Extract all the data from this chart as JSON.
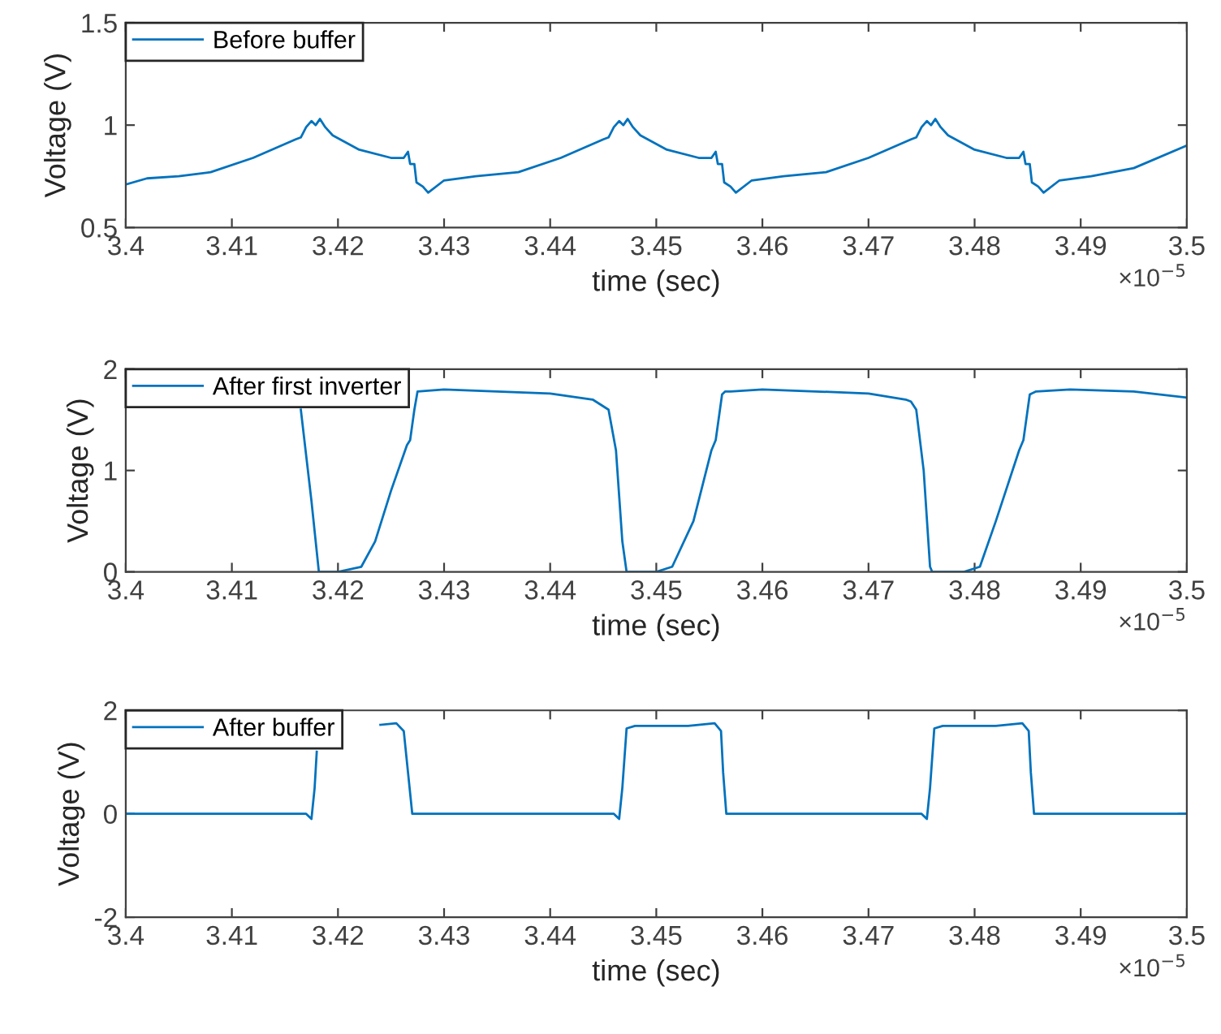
{
  "chart_data": [
    {
      "type": "line",
      "xlabel": "time (sec)",
      "ylabel": "Voltage (V)",
      "xlim": [
        3.4,
        3.5
      ],
      "xticks": [
        3.4,
        3.41,
        3.42,
        3.43,
        3.44,
        3.45,
        3.46,
        3.47,
        3.48,
        3.49,
        3.5
      ],
      "ylim": [
        0.5,
        1.5
      ],
      "yticks": [
        0.5,
        1,
        1.5
      ],
      "legend": "top left",
      "annotations": [
        "×10$^{−5}$"
      ],
      "x": [
        3.4,
        3.402,
        3.405,
        3.408,
        3.412,
        3.416,
        3.4165,
        3.417,
        3.4175,
        3.4179,
        3.4183,
        3.4188,
        3.4195,
        3.422,
        3.425,
        3.4262,
        3.4266,
        3.4268,
        3.4272,
        3.4274,
        3.428,
        3.4285,
        3.43,
        3.433,
        3.437,
        3.441,
        3.445,
        3.4455,
        3.446,
        3.4465,
        3.4469,
        3.4473,
        3.4478,
        3.4485,
        3.451,
        3.454,
        3.4552,
        3.4556,
        3.4558,
        3.4562,
        3.4564,
        3.457,
        3.4575,
        3.459,
        3.462,
        3.466,
        3.47,
        3.474,
        3.4745,
        3.475,
        3.4755,
        3.4759,
        3.4763,
        3.4768,
        3.4775,
        3.48,
        3.483,
        3.4842,
        3.4846,
        3.4848,
        3.4852,
        3.4854,
        3.486,
        3.4865,
        3.488,
        3.491,
        3.495,
        3.5
      ],
      "series": [
        {
          "name": "Before buffer",
          "color": "#0072bd",
          "values": [
            0.71,
            0.74,
            0.75,
            0.77,
            0.84,
            0.93,
            0.94,
            0.99,
            1.02,
            1.0,
            1.03,
            0.99,
            0.95,
            0.88,
            0.84,
            0.84,
            0.87,
            0.81,
            0.81,
            0.72,
            0.7,
            0.67,
            0.73,
            0.75,
            0.77,
            0.84,
            0.93,
            0.94,
            0.99,
            1.02,
            1.0,
            1.03,
            0.99,
            0.95,
            0.88,
            0.84,
            0.84,
            0.87,
            0.81,
            0.81,
            0.72,
            0.7,
            0.67,
            0.73,
            0.75,
            0.77,
            0.84,
            0.93,
            0.94,
            0.99,
            1.02,
            1.0,
            1.03,
            0.99,
            0.95,
            0.88,
            0.84,
            0.84,
            0.87,
            0.81,
            0.81,
            0.72,
            0.7,
            0.67,
            0.73,
            0.75,
            0.79,
            0.9
          ]
        }
      ]
    },
    {
      "type": "line",
      "xlabel": "time (sec)",
      "ylabel": "Voltage (V)",
      "xlim": [
        3.4,
        3.5
      ],
      "xticks": [
        3.4,
        3.41,
        3.42,
        3.43,
        3.44,
        3.45,
        3.46,
        3.47,
        3.48,
        3.49,
        3.5
      ],
      "ylim": [
        0,
        2
      ],
      "yticks": [
        0,
        1,
        2
      ],
      "legend": "top left",
      "annotations": [
        "×10$^{−5}$"
      ],
      "x": [
        3.4165,
        3.4175,
        3.4182,
        3.42,
        3.4222,
        3.4235,
        3.425,
        3.4265,
        3.4268,
        3.4272,
        3.4275,
        3.43,
        3.44,
        3.444,
        3.4455,
        3.4462,
        3.4468,
        3.4472,
        3.45,
        3.4515,
        3.4535,
        3.4552,
        3.4556,
        3.4562,
        3.4565,
        3.457,
        3.46,
        3.465,
        3.47,
        3.4735,
        3.474,
        3.4745,
        3.4752,
        3.4758,
        3.476,
        3.479,
        3.4805,
        3.482,
        3.4842,
        3.4846,
        3.4852,
        3.4858,
        3.489,
        3.495,
        3.5
      ],
      "series": [
        {
          "name": "After first inverter",
          "color": "#0072bd",
          "values": [
            1.6,
            0.7,
            0.0,
            0.0,
            0.05,
            0.3,
            0.8,
            1.25,
            1.3,
            1.6,
            1.78,
            1.8,
            1.76,
            1.7,
            1.6,
            1.2,
            0.3,
            0.0,
            0.0,
            0.05,
            0.5,
            1.2,
            1.3,
            1.75,
            1.78,
            1.78,
            1.8,
            1.78,
            1.76,
            1.7,
            1.68,
            1.6,
            1.0,
            0.05,
            0.0,
            0.0,
            0.05,
            0.5,
            1.2,
            1.3,
            1.75,
            1.78,
            1.8,
            1.78,
            1.72
          ]
        }
      ]
    },
    {
      "type": "line",
      "xlabel": "time (sec)",
      "ylabel": "Voltage (V)",
      "xlim": [
        3.4,
        3.5
      ],
      "xticks": [
        3.4,
        3.41,
        3.42,
        3.43,
        3.44,
        3.45,
        3.46,
        3.47,
        3.48,
        3.49,
        3.5
      ],
      "ylim": [
        -2,
        2
      ],
      "yticks": [
        -2,
        0,
        2
      ],
      "legend": "top left",
      "annotations": [
        "×10$^{−5}$"
      ],
      "x": [
        3.4,
        3.417,
        3.4175,
        3.4178,
        3.418,
        3.419,
        3.424,
        3.4255,
        3.4262,
        3.4266,
        3.427,
        3.446,
        3.4465,
        3.4468,
        3.4472,
        3.448,
        3.453,
        3.4555,
        3.4561,
        3.4563,
        3.4566,
        3.475,
        3.4755,
        3.4758,
        3.4762,
        3.477,
        3.482,
        3.4845,
        3.4851,
        3.4853,
        3.4856,
        3.5
      ],
      "series": [
        {
          "name": "After buffer",
          "color": "#0072bd",
          "values": [
            0,
            0,
            -0.1,
            0.5,
            1.2,
            null,
            1.72,
            1.75,
            1.6,
            0.8,
            0,
            0,
            -0.1,
            0.5,
            1.65,
            1.7,
            1.7,
            1.75,
            1.6,
            0.8,
            0,
            0,
            -0.1,
            0.5,
            1.65,
            1.7,
            1.7,
            1.75,
            1.6,
            0.8,
            0,
            0
          ]
        }
      ]
    }
  ]
}
